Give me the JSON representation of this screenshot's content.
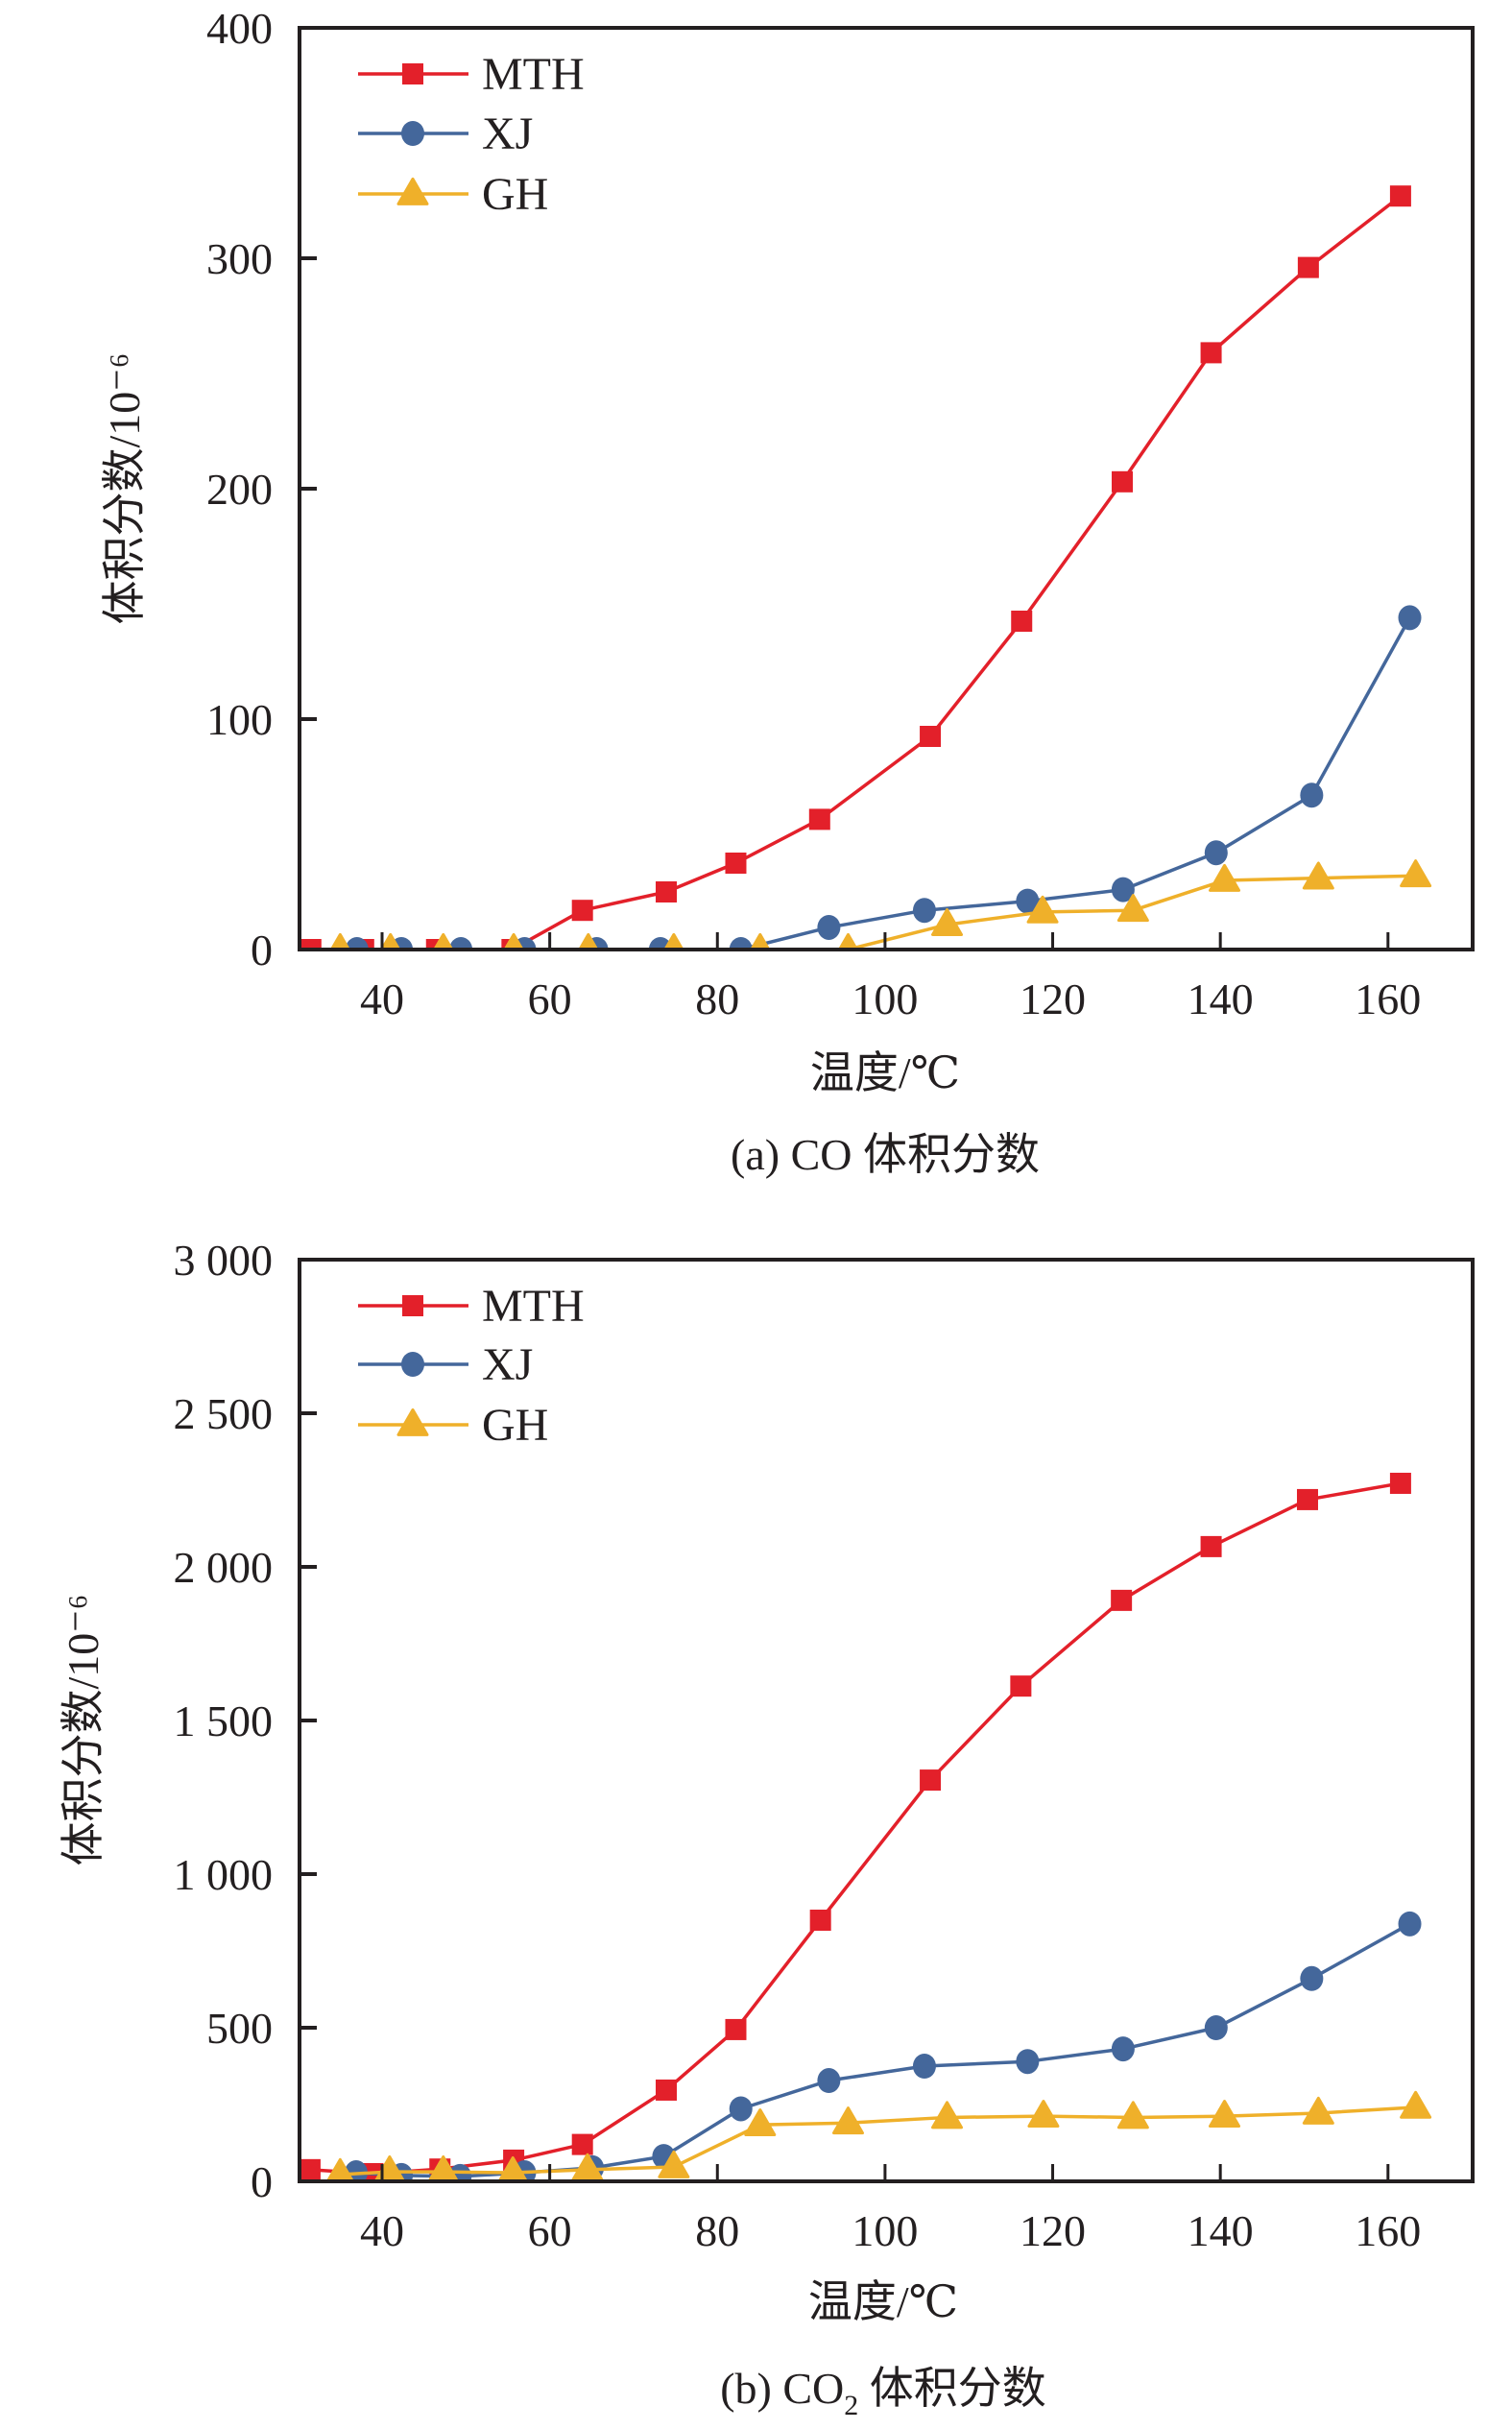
{
  "colors": {
    "MTH": "#e3202a",
    "XJ": "#44679b",
    "GH": "#efb02a",
    "axis": "#231f20"
  },
  "chart_data": [
    {
      "type": "line",
      "caption": "(a) CO 体积分数",
      "xlabel": "温度/℃",
      "ylabel": "体积分数/10⁻⁶",
      "xlim": [
        30.15,
        170.1
      ],
      "ylim": [
        0,
        400
      ],
      "xticks": [
        40,
        60,
        80,
        100,
        120,
        140,
        160
      ],
      "xtick_labels": [
        "40",
        "60",
        "80",
        "100",
        "120",
        "140",
        "160"
      ],
      "yticks": [
        0,
        100,
        200,
        300,
        400
      ],
      "ytick_labels": [
        "0",
        "100",
        "200",
        "300",
        "400"
      ],
      "legend_position": "top-left",
      "series": [
        {
          "name": "MTH",
          "marker": "square",
          "x": [
            31.5,
            37.8,
            46.5,
            55.5,
            63.9,
            73.9,
            82.2,
            92.2,
            105.4,
            116.3,
            128.3,
            138.9,
            150.5,
            161.5
          ],
          "y": [
            0,
            0,
            0,
            0,
            17,
            25,
            37.5,
            56.5,
            92.5,
            142.5,
            203,
            259,
            296,
            327
          ]
        },
        {
          "name": "XJ",
          "marker": "circle",
          "x": [
            37,
            42.3,
            49.4,
            57,
            65.6,
            73.2,
            82.8,
            93.3,
            104.7,
            117,
            128.4,
            139.5,
            150.9,
            162.6
          ],
          "y": [
            0,
            0,
            0,
            0,
            0,
            0,
            0,
            9.6,
            17,
            21,
            26,
            42,
            67,
            144
          ]
        },
        {
          "name": "GH",
          "marker": "triangle",
          "x": [
            35,
            41,
            47.3,
            55.7,
            64.6,
            74.8,
            85.1,
            95.6,
            107.4,
            118.8,
            129.6,
            140.5,
            151.7,
            163.3
          ],
          "y": [
            0,
            0,
            0,
            0,
            0,
            0,
            0,
            0,
            10.8,
            16.3,
            17,
            30,
            31,
            32
          ]
        }
      ]
    },
    {
      "type": "line",
      "caption_prefix": "(b) CO",
      "caption_sub": "2",
      "caption_suffix": " 体积分数",
      "xlabel": "温度/℃",
      "ylabel": "体积分数/10⁻⁶",
      "xlim": [
        30.15,
        170.1
      ],
      "ylim": [
        0,
        3000
      ],
      "xticks": [
        40,
        60,
        80,
        100,
        120,
        140,
        160
      ],
      "xtick_labels": [
        "40",
        "60",
        "80",
        "100",
        "120",
        "140",
        "160"
      ],
      "yticks": [
        0,
        500,
        1000,
        1500,
        2000,
        2500,
        3000
      ],
      "ytick_labels": [
        "0",
        "500",
        "1 000",
        "1 500",
        "2 000",
        "2 500",
        "3 000"
      ],
      "legend_position": "top-left",
      "series": [
        {
          "name": "MTH",
          "marker": "square",
          "x": [
            31.4,
            38.9,
            46.9,
            55.7,
            63.9,
            73.9,
            82.2,
            92.3,
            105.4,
            116.2,
            128.2,
            138.9,
            150.4,
            161.5
          ],
          "y": [
            38,
            25,
            40,
            69,
            120,
            297,
            494,
            850,
            1306,
            1612,
            1891,
            2066,
            2219,
            2272
          ]
        },
        {
          "name": "XJ",
          "marker": "circle",
          "x": [
            36.9,
            42.3,
            49.3,
            57,
            65.1,
            73.6,
            82.8,
            93.3,
            104.7,
            117,
            128.4,
            139.5,
            150.9,
            162.6
          ],
          "y": [
            28,
            19,
            16,
            28,
            44,
            81,
            236,
            328,
            375,
            390,
            431,
            500,
            660,
            838
          ]
        },
        {
          "name": "GH",
          "marker": "triangle",
          "x": [
            35,
            40.9,
            47.3,
            55.6,
            64.5,
            74.8,
            85.1,
            95.6,
            107.4,
            118.9,
            129.6,
            140.5,
            151.7,
            163.3
          ],
          "y": [
            22,
            31,
            31,
            28,
            38,
            47,
            184,
            190,
            208,
            212,
            208,
            212,
            222,
            241
          ]
        }
      ]
    }
  ]
}
